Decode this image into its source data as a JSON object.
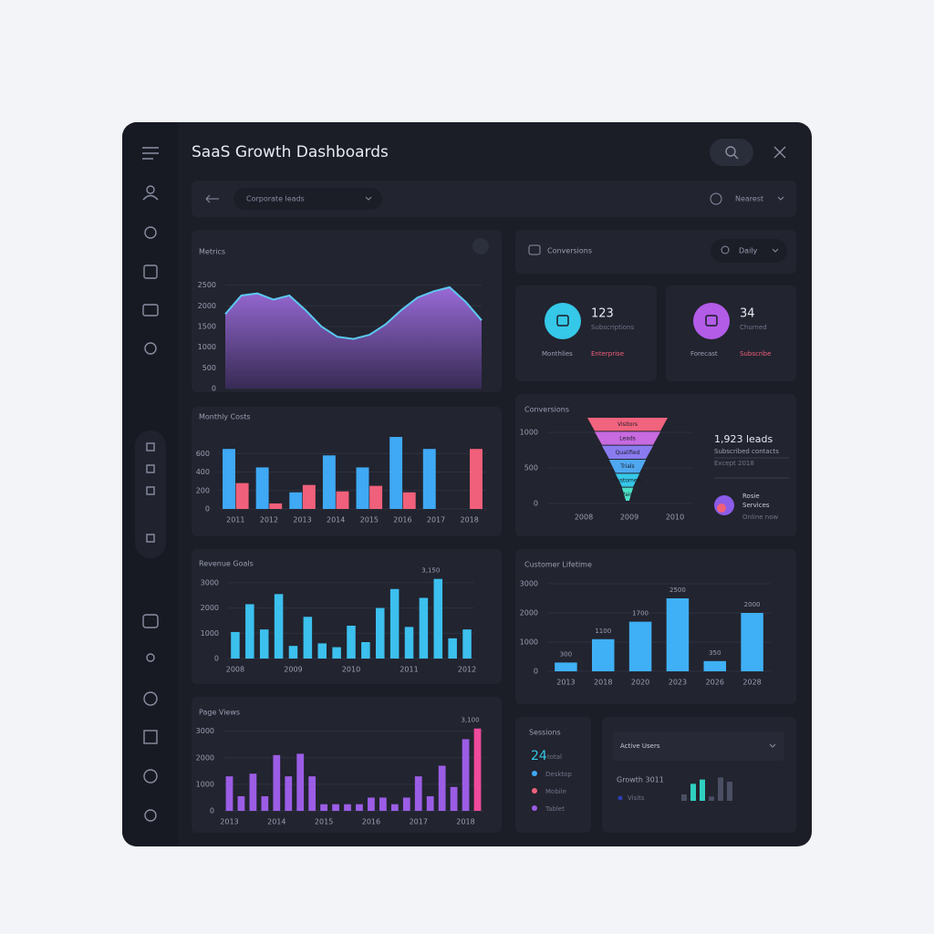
{
  "header": {
    "title": "SaaS Growth Dashboards"
  },
  "toolbar": {
    "dropdown": "Corporate leads",
    "filter": "Nearest"
  },
  "conversions_bar": {
    "title": "Conversions",
    "dropdown": "Daily"
  },
  "kpis": [
    {
      "value": 123,
      "subtitle": "Subscriptions",
      "labels": [
        "Monthlies",
        "Enterprise"
      ]
    },
    {
      "value": 34,
      "subtitle": "Churned",
      "labels": [
        "Forecast",
        "Subscribe"
      ]
    }
  ],
  "funnel_summary": {
    "headline": "1,923 leads",
    "detail": "Subscribed contacts",
    "note": "Except 2018",
    "person": "Rosie",
    "role": "Services",
    "status": "Online now"
  },
  "sessions": {
    "title": "Sessions",
    "value": 24,
    "unit": "total",
    "legend": [
      {
        "label": "Desktop",
        "color": "#3fa9f5"
      },
      {
        "label": "Mobile",
        "color": "#f0607a"
      },
      {
        "label": "Tablet",
        "color": "#9b5de5"
      }
    ]
  },
  "active": {
    "dropdown": "Active Users",
    "label": "Growth 3011",
    "sub": "Visits"
  },
  "charts": [
    {
      "type": "area",
      "title": "Metrics",
      "color": "#9b6ddc",
      "line_color": "#5cc8f0",
      "values": [
        1800,
        2250,
        2300,
        2150,
        2250,
        1900,
        1500,
        1250,
        1200,
        1300,
        1550,
        1900,
        2200,
        2350,
        2450,
        2100,
        1650
      ],
      "ylim": [
        0,
        2800
      ],
      "yticks": [
        0,
        500,
        1000,
        1500,
        2000,
        2500
      ]
    },
    {
      "type": "bar",
      "title": "Monthly Costs",
      "categories": [
        "2011",
        "2012",
        "2013",
        "2014",
        "2015",
        "2016",
        "2017",
        "2018"
      ],
      "series": [
        {
          "color": "#3fa9f5",
          "values": [
            650,
            450,
            180,
            580,
            450,
            780,
            650,
            null
          ]
        },
        {
          "color": "#f0607a",
          "values": [
            280,
            60,
            260,
            190,
            250,
            180,
            null,
            650
          ]
        }
      ],
      "ylim": [
        0,
        800
      ],
      "yticks": [
        0,
        200,
        400,
        600
      ]
    },
    {
      "type": "bar",
      "title": "Revenue Goals",
      "color": "#3cc0ee",
      "annotation": "3,150",
      "categories": [
        "2008",
        null,
        null,
        null,
        "2009",
        null,
        null,
        null,
        "2010",
        null,
        null,
        null,
        "2011",
        null,
        null,
        null,
        "2012"
      ],
      "values": [
        1050,
        2150,
        1150,
        2550,
        500,
        1650,
        600,
        450,
        1300,
        650,
        2000,
        2750,
        1250,
        2400,
        3150,
        800,
        1150
      ],
      "ylim": [
        0,
        3500
      ],
      "yticks": [
        0,
        1000,
        2000,
        3000
      ]
    },
    {
      "type": "bar",
      "title": "Page Views",
      "annotation": "3,100",
      "categories": [
        "2013",
        null,
        null,
        null,
        "2014",
        null,
        null,
        null,
        "2015",
        null,
        null,
        null,
        "2016",
        null,
        null,
        null,
        "2017",
        null,
        null,
        null,
        "2018",
        null
      ],
      "values": [
        1300,
        550,
        1400,
        550,
        2100,
        1300,
        2150,
        1300,
        250,
        250,
        250,
        250,
        500,
        500,
        250,
        500,
        1300,
        550,
        1700,
        900,
        2700,
        3100
      ],
      "colors": [
        "#9b5de5",
        "#9b5de5",
        "#9b5de5",
        "#9b5de5",
        "#9b5de5",
        "#9b5de5",
        "#9b5de5",
        "#9b5de5",
        "#9b5de5",
        "#9b5de5",
        "#9b5de5",
        "#9b5de5",
        "#9b5de5",
        "#9b5de5",
        "#9b5de5",
        "#9b5de5",
        "#9b5de5",
        "#9b5de5",
        "#9b5de5",
        "#9b5de5",
        "#9b5de5",
        "#f04a9b"
      ],
      "ylim": [
        0,
        3400
      ],
      "yticks": [
        0,
        1000,
        2000,
        3000
      ]
    },
    {
      "type": "funnel",
      "title": "Conversions",
      "stages": [
        "Visitors",
        "Leads",
        "Qualified",
        "Trials",
        "Customers",
        "Paid"
      ],
      "values": [
        1000,
        820,
        640,
        460,
        300,
        140
      ],
      "colors": [
        "#f2637e",
        "#c86ae0",
        "#8a7cf0",
        "#4fa8f0",
        "#35c8e8",
        "#4de0c8"
      ],
      "categories": [
        "2008",
        "2009",
        "2010"
      ],
      "ylim": [
        0,
        1000
      ],
      "yticks": [
        0,
        500,
        1000
      ]
    },
    {
      "type": "bar",
      "title": "Customer Lifetime",
      "color": "#3fb0f5",
      "show_values": true,
      "categories": [
        "2013",
        "2018",
        "2020",
        "2023",
        "2026",
        "2028"
      ],
      "values": [
        300,
        1100,
        1700,
        2500,
        350,
        2000
      ],
      "ylim": [
        0,
        3000
      ],
      "yticks": [
        0,
        1000,
        2000,
        3000
      ]
    },
    {
      "type": "bar",
      "values": [
        300,
        800,
        1000,
        200,
        1100,
        900
      ],
      "colors": [
        "#4a4f63",
        "#2fd0c0",
        "#2fd0c0",
        "#4a4f63",
        "#4a4f63",
        "#4a4f63"
      ],
      "ylim": [
        0,
        1200
      ]
    }
  ]
}
